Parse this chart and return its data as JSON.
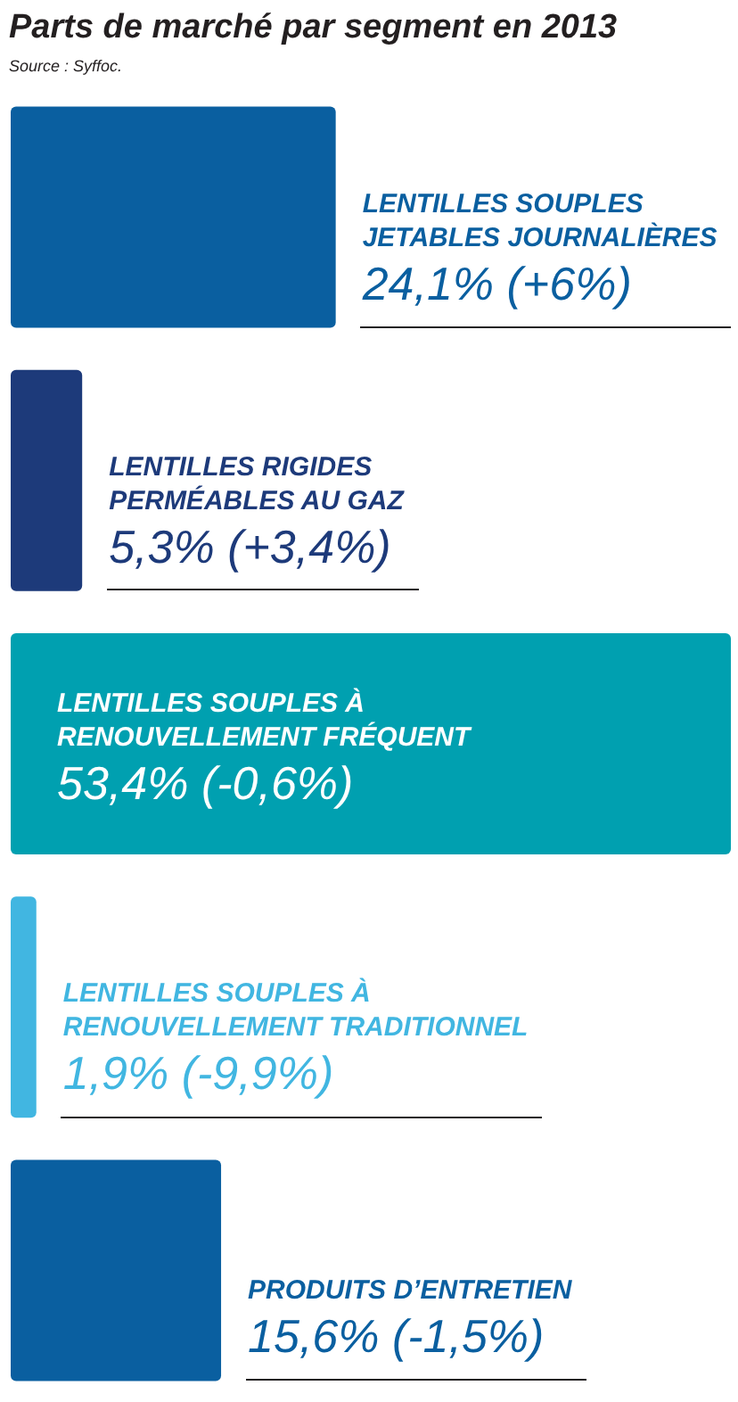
{
  "chart_data": {
    "type": "bar",
    "orientation": "horizontal",
    "title": "Parts de marché par segment en 2013",
    "annotations": [
      "Source : Syffoc."
    ],
    "categories": [
      "LENTILLES SOUPLES JETABLES JOURNALIÈRES",
      "LENTILLES RIGIDES PERMÉABLES AU GAZ",
      "LENTILLES SOUPLES À RENOUVELLEMENT FRÉQUENT",
      "LENTILLES SOUPLES À RENOUVELLEMENT TRADITIONNEL",
      "PRODUITS D’ENTRETIEN"
    ],
    "values": [
      24.1,
      5.3,
      53.4,
      1.9,
      15.6
    ],
    "colors": [
      "#0a5fa0",
      "#1d3a7a",
      "#00a0b0",
      "#41b6e1",
      "#0a5fa0"
    ],
    "value_labels": [
      "24,1% (+6%)",
      "5,3% (+3,4%)",
      "53,4% (-0,6%)",
      "1,9% (-9,9%)",
      "15,6% (-1,5%)"
    ]
  }
}
